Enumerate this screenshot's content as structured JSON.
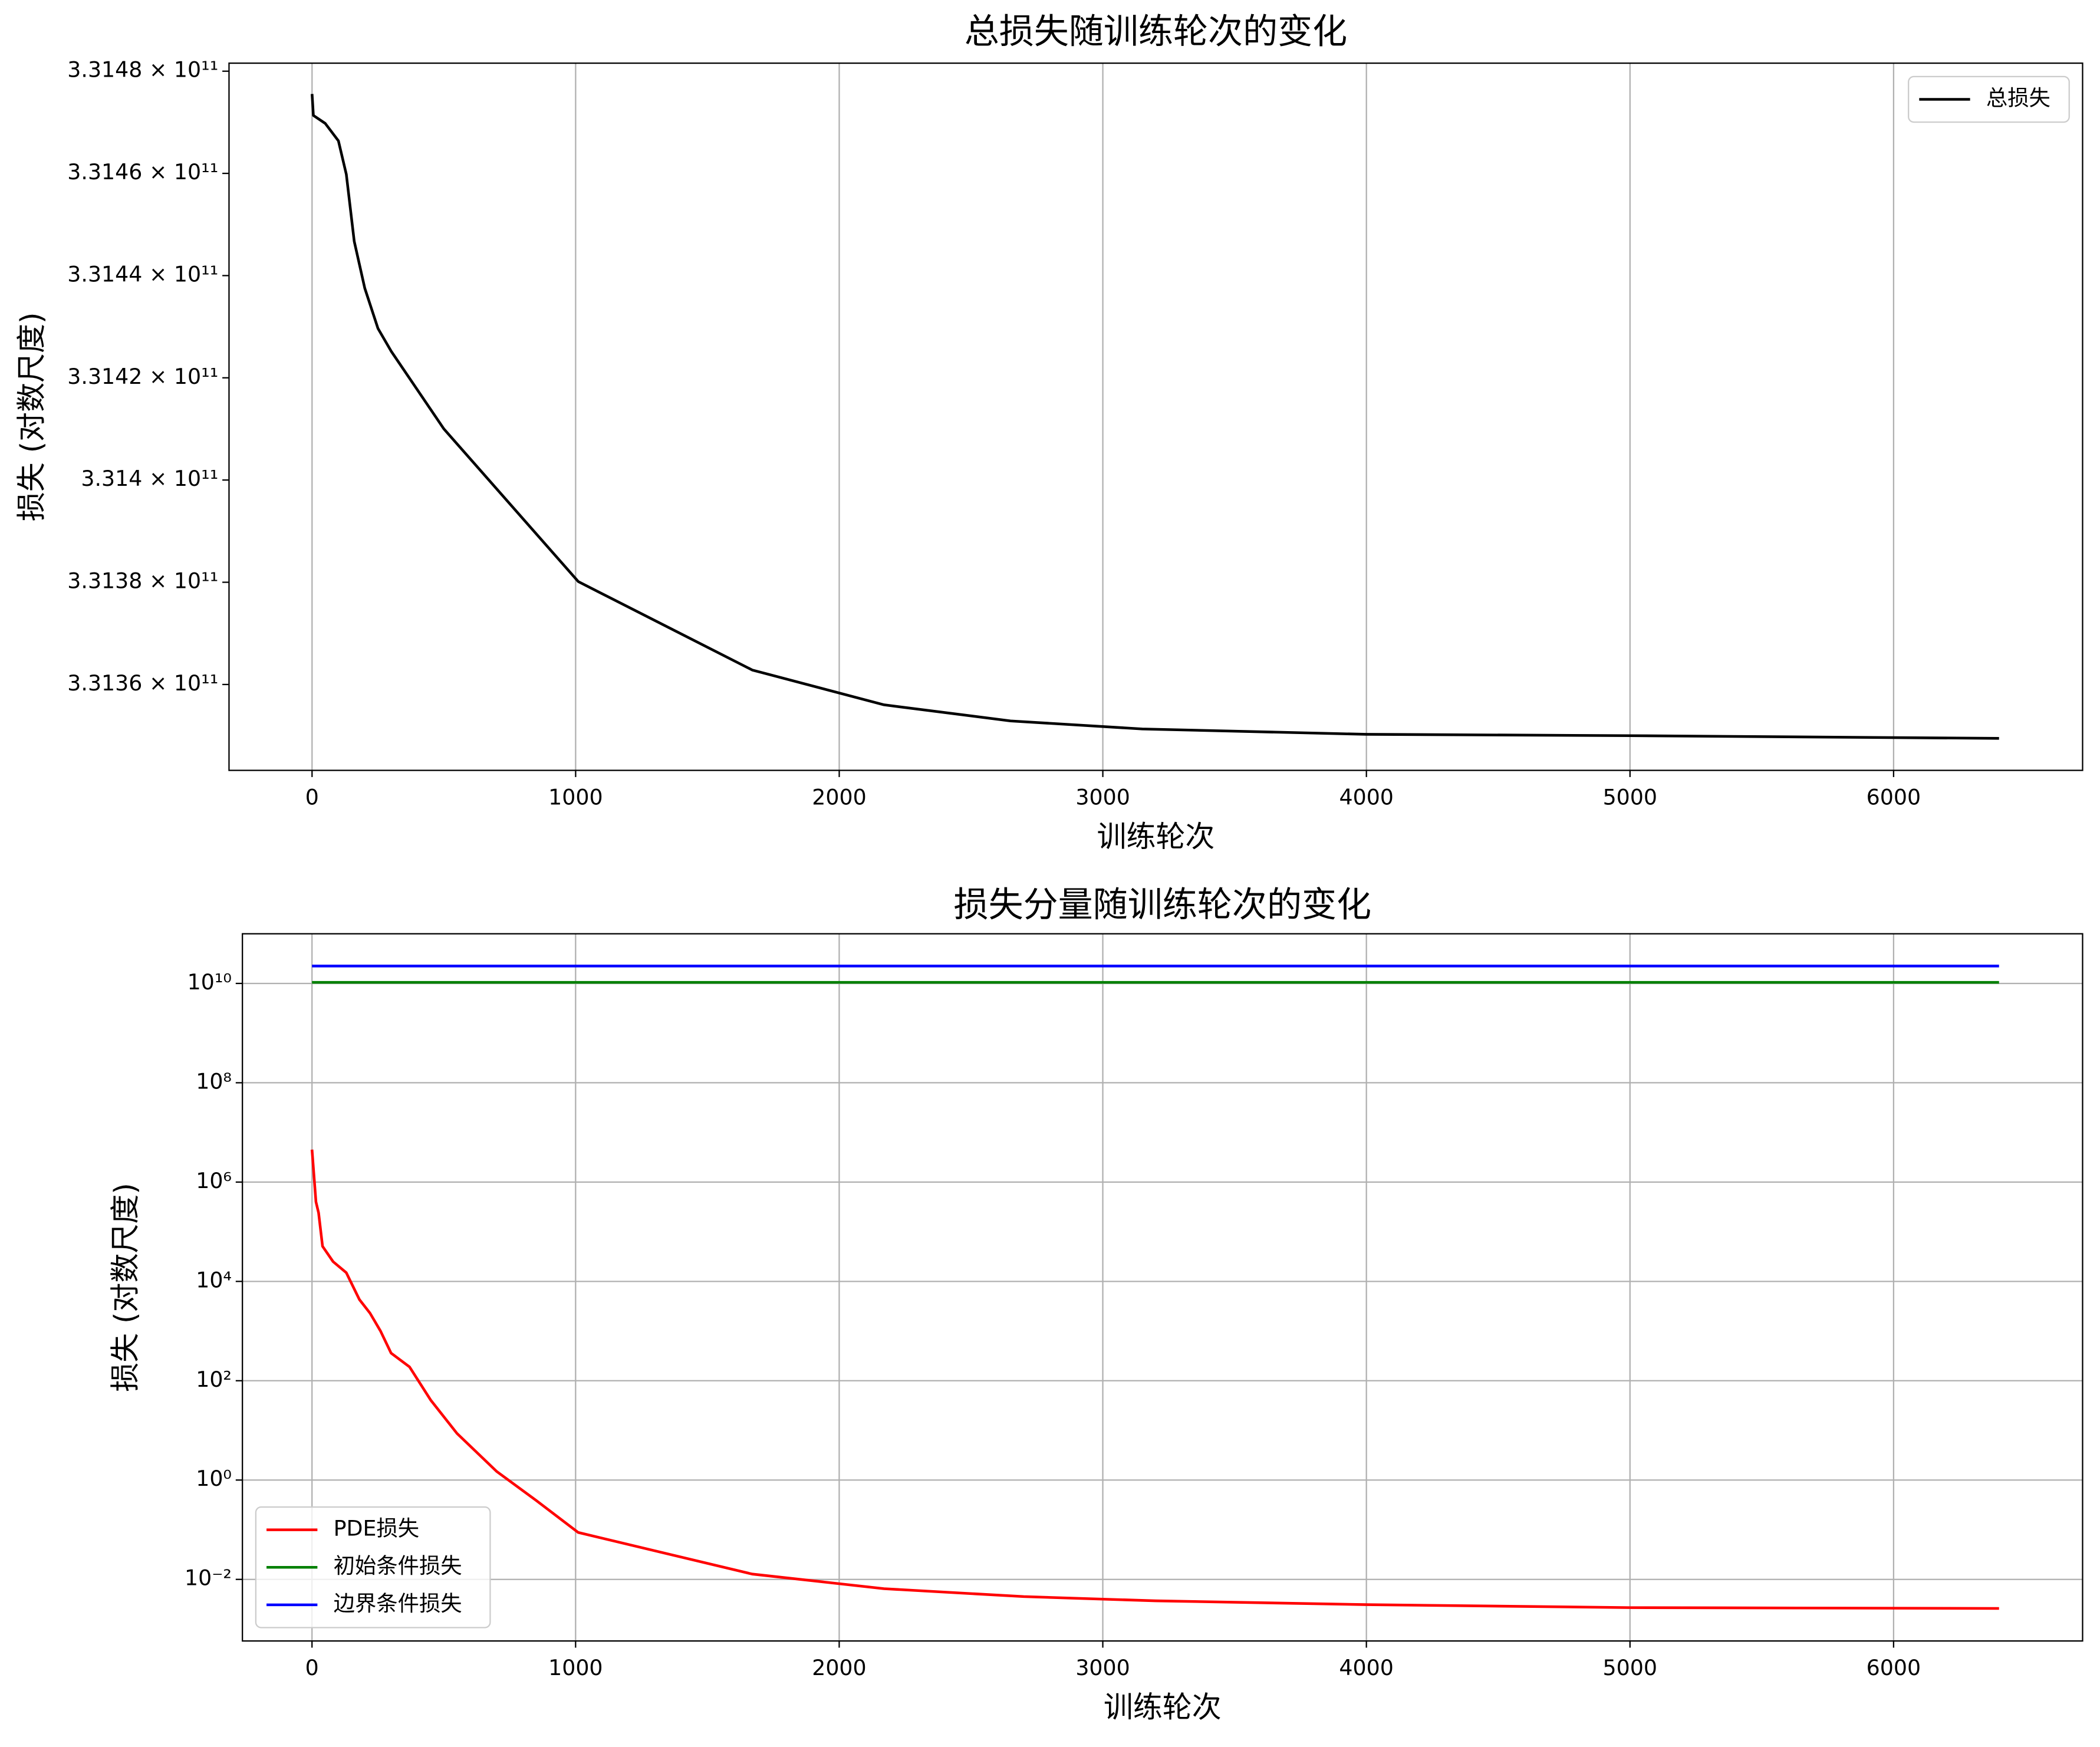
{
  "chart_data": [
    {
      "type": "line",
      "title": "总损失随训练轮次的变化",
      "x_label": "训练轮次",
      "y_label": "损失 (对数尺度)",
      "log_y": true,
      "grid": "x",
      "legend": "upper right",
      "xlim": [
        -315,
        6717
      ],
      "xticks": [
        0,
        1000,
        2000,
        3000,
        4000,
        5000,
        6000
      ],
      "ylim": [
        331343200000,
        331481570000
      ],
      "yticks": [
        {
          "value": 331360000000,
          "label": "3.3136 × 10¹¹"
        },
        {
          "value": 331380000000,
          "label": "3.3138 × 10¹¹"
        },
        {
          "value": 331400000000,
          "label": "3.314 × 10¹¹"
        },
        {
          "value": 331420000000,
          "label": "3.3142 × 10¹¹"
        },
        {
          "value": 331440000000,
          "label": "3.3144 × 10¹¹"
        },
        {
          "value": 331460000000,
          "label": "3.3146 × 10¹¹"
        },
        {
          "value": 331480000000,
          "label": "3.3148 × 10¹¹"
        }
      ],
      "series": [
        {
          "name": "总损失",
          "color": "#000000",
          "x": [
            0,
            5,
            50,
            100,
            130,
            160,
            200,
            250,
            300,
            500,
            1010,
            1670,
            2170,
            2650,
            3150,
            4000,
            5000,
            6400
          ],
          "values": [
            331475540000,
            331471350000,
            331469780000,
            331466370000,
            331459820000,
            331446710000,
            331437540000,
            331429670000,
            331425220000,
            331410010000,
            331380130000,
            331362830000,
            331356020000,
            331352870000,
            331351300000,
            331350250000,
            331349990000,
            331349460000
          ]
        }
      ]
    },
    {
      "type": "line",
      "title": "损失分量随训练轮次的变化",
      "x_label": "训练轮次",
      "y_label": "损失 (对数尺度)",
      "log_y": true,
      "grid": "both",
      "legend": "lower left",
      "xlim": [
        -264,
        6717
      ],
      "xticks": [
        0,
        1000,
        2000,
        3000,
        4000,
        5000,
        6000
      ],
      "ylim": [
        0.000575,
        100000000000
      ],
      "yticks": [
        {
          "value": 0.01,
          "label": "10⁻²"
        },
        {
          "value": 1,
          "label": "10⁰"
        },
        {
          "value": 100,
          "label": "10²"
        },
        {
          "value": 10000,
          "label": "10⁴"
        },
        {
          "value": 1000000,
          "label": "10⁶"
        },
        {
          "value": 100000000,
          "label": "10⁸"
        },
        {
          "value": 10000000000,
          "label": "10¹⁰"
        }
      ],
      "series": [
        {
          "name": "PDE损失",
          "color": "#ff0000",
          "x": [
            0,
            15,
            25,
            40,
            80,
            130,
            180,
            220,
            260,
            300,
            370,
            450,
            550,
            700,
            850,
            1010,
            1670,
            2170,
            2700,
            3200,
            4000,
            5000,
            6400
          ],
          "values": [
            4500000,
            400000,
            240000,
            51000,
            25000,
            15000,
            4300,
            2300,
            1000,
            360,
            190,
            41,
            8.7,
            1.5,
            0.39,
            0.088,
            0.0128,
            0.0065,
            0.0045,
            0.0037,
            0.0031,
            0.0027,
            0.0026
          ]
        },
        {
          "name": "初始条件损失",
          "color": "#008000",
          "x": [
            0,
            6400
          ],
          "values": [
            10500000000,
            10500000000
          ]
        },
        {
          "name": "边界条件损失",
          "color": "#0000ff",
          "x": [
            0,
            6400
          ],
          "values": [
            22400000000,
            22400000000
          ]
        }
      ]
    }
  ]
}
